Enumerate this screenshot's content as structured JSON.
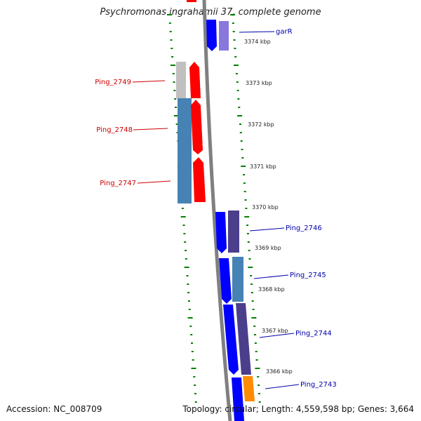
{
  "title": "Psychromonas ingrahamii 37, complete genome",
  "footer": {
    "accession": "Accession: NC_008709",
    "topology": "Topology: circular; Length: 4,559,598 bp; Genes: 3,664"
  },
  "colors": {
    "forward_gene_blue": "#0000ff",
    "reverse_gene_red": "#ff0000",
    "cog_purple": "#4b3f8c",
    "cog_steelblue": "#4682b4",
    "cog_lavender": "#8877dd",
    "cog_gray": "#c0c0c0",
    "cog_orange": "#ff8c00",
    "label_blue": "#0000aa",
    "label_red": "#cc0000",
    "tick_green": "#008000",
    "backbone_gray": "#808080"
  },
  "scale_labels": [
    "3374 kbp",
    "3373 kbp",
    "3372 kbp",
    "3371 kbp",
    "3370 kbp",
    "3369 kbp",
    "3368 kbp",
    "3367 kbp",
    "3366 kbp"
  ],
  "gene_labels": {
    "left": [
      "Ping_2749",
      "Ping_2748",
      "Ping_2747"
    ],
    "right": [
      "garR",
      "Ping_2746",
      "Ping_2745",
      "Ping_2744",
      "Ping_2743"
    ]
  }
}
